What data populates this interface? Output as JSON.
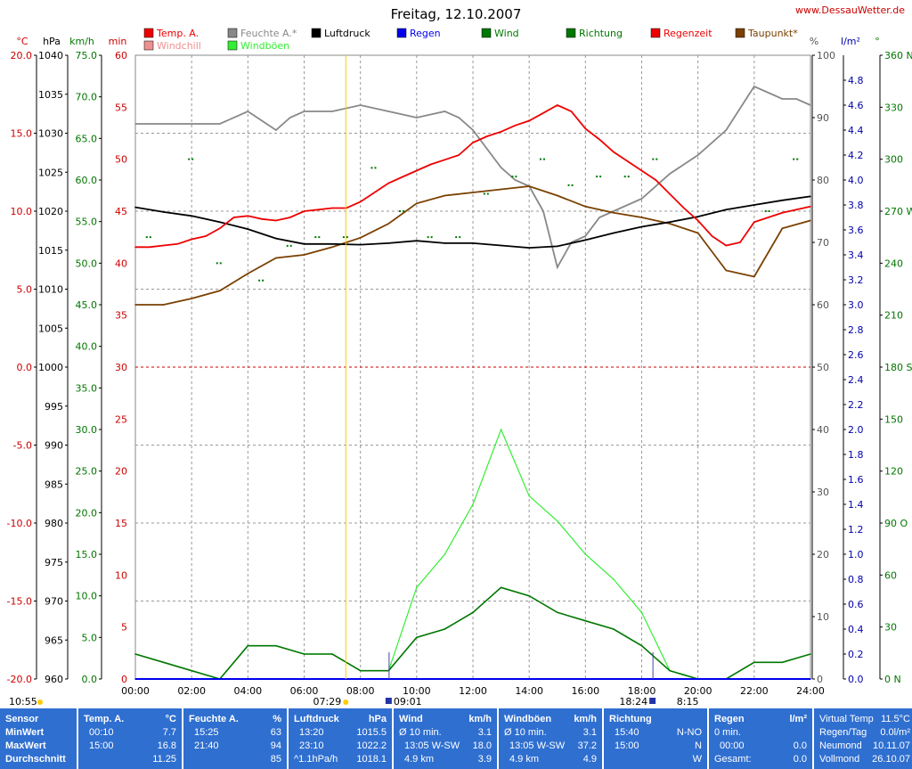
{
  "site": "www.DessauWetter.de",
  "chart_data": {
    "type": "line",
    "title": "Freitag, 12.10.2007",
    "x_ticks": [
      "00:00",
      "02:00",
      "04:00",
      "06:00",
      "08:00",
      "10:00",
      "12:00",
      "14:00",
      "16:00",
      "18:00",
      "20:00",
      "22:00",
      "24:00"
    ],
    "xlim": [
      0,
      24
    ],
    "axes": [
      {
        "unit": "°C",
        "ticks": [
          "20.0",
          "15.0",
          "10.0",
          "5.0",
          "0.0",
          "-5.0",
          "-10.0",
          "-15.0",
          "-20.0"
        ],
        "ylim": [
          -20,
          20
        ],
        "color": "#cc0000"
      },
      {
        "unit": "hPa",
        "ticks": [
          "1040",
          "1035",
          "1030",
          "1025",
          "1020",
          "1015",
          "1010",
          "1005",
          "1000",
          "995",
          "990",
          "985",
          "980",
          "975",
          "970",
          "965",
          "960"
        ],
        "ylim": [
          960,
          1040
        ],
        "color": "#000000"
      },
      {
        "unit": "km/h",
        "ticks": [
          "75.0",
          "70.0",
          "65.0",
          "60.0",
          "55.0",
          "50.0",
          "45.0",
          "40.0",
          "35.0",
          "30.0",
          "25.0",
          "20.0",
          "15.0",
          "10.0",
          "5.0",
          "0.0"
        ],
        "ylim": [
          0,
          75
        ],
        "color": "#007700"
      },
      {
        "unit": "min",
        "ticks": [
          "60",
          "55",
          "50",
          "45",
          "40",
          "35",
          "30",
          "25",
          "20",
          "15",
          "10",
          "5",
          "0"
        ],
        "ylim": [
          0,
          60
        ],
        "color": "#cc0000"
      },
      {
        "unit": "%",
        "ticks": [
          "100",
          "90",
          "80",
          "70",
          "60",
          "50",
          "40",
          "30",
          "20",
          "10",
          "0"
        ],
        "ylim": [
          0,
          100
        ],
        "color": "#555555"
      },
      {
        "unit": "l/m²",
        "ticks": [
          "4.8",
          "4.6",
          "4.4",
          "4.2",
          "4.0",
          "3.8",
          "3.6",
          "3.4",
          "3.2",
          "3.0",
          "2.8",
          "2.6",
          "2.4",
          "2.2",
          "2.0",
          "1.8",
          "1.6",
          "1.4",
          "1.2",
          "1.0",
          "0.8",
          "0.6",
          "0.4",
          "0.2",
          "0.0"
        ],
        "ylim": [
          0,
          5.0
        ],
        "color": "#0000aa"
      },
      {
        "unit": "°",
        "ticks": [
          "360 N",
          "330",
          "300",
          "270 W",
          "240",
          "210",
          "180 S",
          "150",
          "120",
          "90 O",
          "60",
          "30",
          "0 N"
        ],
        "ylim": [
          0,
          360
        ],
        "color": "#007700"
      }
    ],
    "legend": [
      {
        "name": "Temp. A.",
        "color": "#ee0000"
      },
      {
        "name": "Windchill",
        "color": "#ee9090"
      },
      {
        "name": "Feuchte A.*",
        "color": "#888888"
      },
      {
        "name": "Windböen",
        "color": "#33ee33"
      },
      {
        "name": "Luftdruck",
        "color": "#000000"
      },
      {
        "name": "Regen",
        "color": "#0000ee"
      },
      {
        "name": "Wind",
        "color": "#007700"
      },
      {
        "name": "Richtung",
        "color": "#007700"
      },
      {
        "name": "Regenzeit",
        "color": "#ee0000"
      },
      {
        "name": "Taupunkt*",
        "color": "#7a4000"
      }
    ],
    "series": [
      {
        "name": "Temp. A.",
        "unit": "°C",
        "x": [
          0,
          0.5,
          1,
          1.5,
          2,
          2.5,
          3,
          3.5,
          4,
          4.5,
          5,
          5.5,
          6,
          6.5,
          7,
          7.5,
          8,
          8.5,
          9,
          9.5,
          10,
          10.5,
          11,
          11.5,
          12,
          12.5,
          13,
          13.5,
          14,
          14.5,
          15,
          15.5,
          16,
          16.5,
          17,
          17.5,
          18,
          18.5,
          19,
          19.5,
          20,
          20.5,
          21,
          21.5,
          22,
          22.5,
          23,
          23.5,
          24
        ],
        "y": [
          7.7,
          7.7,
          7.8,
          7.9,
          8.2,
          8.4,
          8.9,
          9.6,
          9.7,
          9.5,
          9.4,
          9.6,
          10.0,
          10.1,
          10.2,
          10.2,
          10.6,
          11.2,
          11.8,
          12.2,
          12.6,
          13.0,
          13.3,
          13.6,
          14.4,
          14.8,
          15.1,
          15.5,
          15.8,
          16.3,
          16.8,
          16.4,
          15.3,
          14.6,
          13.8,
          13.2,
          12.6,
          12.0,
          11.1,
          10.2,
          9.4,
          8.4,
          7.8,
          8.0,
          9.3,
          9.6,
          9.9,
          10.1,
          10.3
        ]
      },
      {
        "name": "Luftdruck",
        "unit": "hPa",
        "x": [
          0,
          1,
          2,
          3,
          4,
          5,
          6,
          7,
          8,
          9,
          10,
          11,
          12,
          13,
          14,
          15,
          16,
          17,
          18,
          19,
          20,
          21,
          22,
          23,
          24
        ],
        "y": [
          1020.5,
          1019.9,
          1019.4,
          1018.6,
          1017.7,
          1016.5,
          1015.8,
          1015.8,
          1015.7,
          1015.9,
          1016.2,
          1015.9,
          1015.9,
          1015.6,
          1015.3,
          1015.5,
          1016.3,
          1017.2,
          1018.0,
          1018.6,
          1019.3,
          1020.2,
          1020.8,
          1021.4,
          1021.9
        ]
      },
      {
        "name": "Feuchte A.*",
        "unit": "%",
        "x": [
          0,
          1,
          2,
          3,
          4,
          5,
          5.5,
          6,
          7,
          8,
          9,
          10,
          11,
          11.5,
          12,
          12.5,
          13,
          13.5,
          14,
          14.5,
          15,
          15.5,
          16,
          16.5,
          17,
          18,
          19,
          20,
          21,
          22,
          23,
          23.5,
          24
        ],
        "y": [
          89,
          89,
          89,
          89,
          91,
          88,
          90,
          91,
          91,
          92,
          91,
          90,
          91,
          90,
          88,
          85,
          82,
          80,
          79,
          75,
          66,
          70,
          71,
          74,
          75,
          77,
          81,
          84,
          88,
          95,
          93,
          93,
          92
        ]
      },
      {
        "name": "Taupunkt*",
        "unit": "°C",
        "x": [
          0,
          1,
          2,
          3,
          4,
          5,
          6,
          7,
          8,
          9,
          10,
          11,
          12,
          13,
          14,
          15,
          16,
          17,
          18,
          19,
          20,
          21,
          22,
          23,
          24
        ],
        "y": [
          4.0,
          4.0,
          4.4,
          4.9,
          6.0,
          7.0,
          7.2,
          7.7,
          8.3,
          9.2,
          10.5,
          11.0,
          11.2,
          11.4,
          11.6,
          11.0,
          10.3,
          9.9,
          9.6,
          9.2,
          8.6,
          6.2,
          5.8,
          8.9,
          9.4
        ]
      },
      {
        "name": "Wind",
        "unit": "km/h",
        "x": [
          0,
          1,
          2,
          3,
          4,
          5,
          6,
          7,
          8,
          9,
          10,
          11,
          12,
          13,
          14,
          15,
          16,
          17,
          18,
          19,
          20,
          21,
          22,
          23,
          24
        ],
        "y": [
          3,
          2,
          1,
          0,
          4,
          4,
          3,
          3,
          1,
          1,
          5,
          6,
          8,
          11,
          10,
          8,
          7,
          6,
          4,
          1,
          0,
          0,
          2,
          2,
          3
        ]
      },
      {
        "name": "Windböen",
        "unit": "km/h",
        "x": [
          0,
          1,
          2,
          3,
          4,
          5,
          6,
          7,
          8,
          9,
          10,
          11,
          12,
          13,
          14,
          15,
          16,
          17,
          18,
          19,
          20,
          21,
          22,
          23,
          24
        ],
        "y": [
          3,
          2,
          1,
          0,
          4,
          4,
          3,
          3,
          1,
          1,
          11,
          15,
          21,
          30,
          22,
          19,
          15,
          12,
          8,
          1,
          0,
          0,
          2,
          2,
          3
        ]
      },
      {
        "name": "Richtung",
        "unit": "°",
        "x": [
          0.5,
          2,
          3,
          4.5,
          5.5,
          6.5,
          7.5,
          8.5,
          9.5,
          10.5,
          11.5,
          12.5,
          13.5,
          14.5,
          15.5,
          16.5,
          17.5,
          18.5,
          22.5,
          23.5
        ],
        "y": [
          255,
          300,
          240,
          230,
          250,
          255,
          255,
          295,
          270,
          255,
          255,
          280,
          290,
          300,
          285,
          290,
          290,
          300,
          270,
          300
        ]
      },
      {
        "name": "Regen",
        "unit": "l/m²",
        "x": [
          0,
          24
        ],
        "y": [
          0,
          0
        ]
      }
    ],
    "event_markers": [
      {
        "time": "07:29",
        "label": "07:29"
      },
      {
        "time": "09:01",
        "label": "09:01"
      },
      {
        "time": "18:24",
        "label": "18:24"
      },
      {
        "time": "8:15",
        "label": "8:15"
      },
      {
        "time": "10:55",
        "label": "10:55"
      }
    ]
  },
  "stats": {
    "sensor": {
      "header": "Sensor",
      "rows": [
        "MinWert",
        "MaxWert",
        "Durchschnitt"
      ]
    },
    "temp": {
      "header": "Temp. A.",
      "unit": "°C",
      "rows": [
        [
          "00:10",
          "7.7"
        ],
        [
          "15:00",
          "16.8"
        ],
        [
          "",
          "11.25"
        ]
      ]
    },
    "feuchte": {
      "header": "Feuchte A.",
      "unit": "%",
      "rows": [
        [
          "15:25",
          "63"
        ],
        [
          "21:40",
          "94"
        ],
        [
          "",
          "85"
        ]
      ]
    },
    "luftdruck": {
      "header": "Luftdruck",
      "unit": "hPa",
      "rows": [
        [
          "13:20",
          "1015.5"
        ],
        [
          "23:10",
          "1022.2"
        ],
        [
          "^1.1hPa/h",
          "1018.1"
        ]
      ]
    },
    "wind": {
      "header": "Wind",
      "unit": "km/h",
      "rows": [
        [
          "Ø 10 min.",
          "3.1"
        ],
        [
          "13:05   W-SW",
          "18.0"
        ],
        [
          "4.9 km",
          "3.9"
        ]
      ]
    },
    "windboeen": {
      "header": "Windböen",
      "unit": "km/h",
      "rows": [
        [
          "Ø 10 min.",
          "3.1"
        ],
        [
          "13:05   W-SW",
          "37.2"
        ],
        [
          "4.9 km",
          "4.9"
        ]
      ]
    },
    "richtung": {
      "header": "Richtung",
      "unit": "",
      "rows": [
        [
          "15:40",
          "N-NO"
        ],
        [
          "15:00",
          "N"
        ],
        [
          "",
          "W"
        ]
      ]
    },
    "regen": {
      "header": "Regen",
      "unit": "l/m²",
      "rows": [
        [
          "0 min.",
          ""
        ],
        [
          "00:00",
          "0.0"
        ],
        [
          "Gesamt:",
          "0.0"
        ]
      ]
    },
    "extra": {
      "rows": [
        [
          "Virtual Temp",
          "11.5°C"
        ],
        [
          "Regen/Tag",
          "0.0l/m²"
        ],
        [
          "Neumond",
          "10.11.07"
        ],
        [
          "Vollmond",
          "26.10.07"
        ]
      ]
    }
  }
}
